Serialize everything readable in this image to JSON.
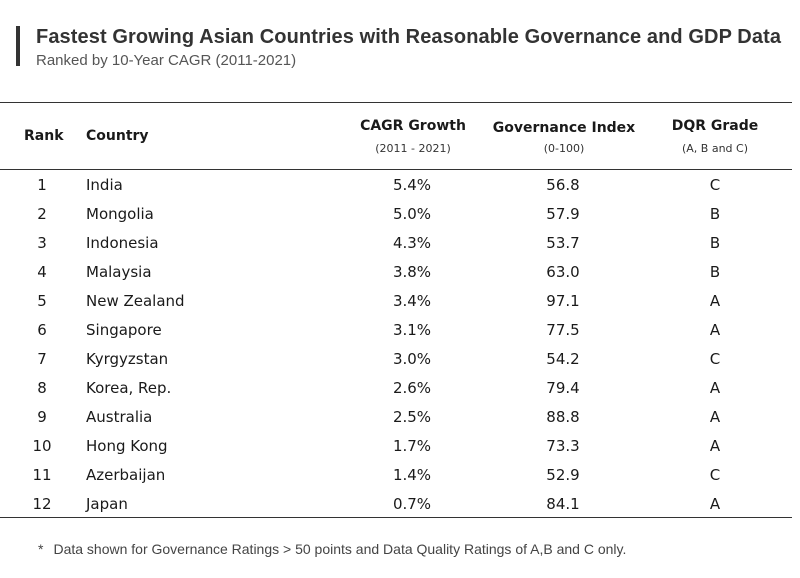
{
  "header": {
    "title": "Fastest Growing Asian Countries with Reasonable Governance and GDP Data",
    "subtitle": "Ranked by 10-Year CAGR (2011-2021)"
  },
  "columns": {
    "rank": "Rank",
    "country": "Country",
    "cagr": "CAGR Growth",
    "cagr_sub": "(2011 - 2021)",
    "gov": "Governance Index",
    "gov_sub": "(0-100)",
    "dqr": "DQR Grade",
    "dqr_sub": "(A, B and C)"
  },
  "chart_data": {
    "type": "table",
    "title": "Fastest Growing Asian Countries with Reasonable Governance and GDP Data",
    "subtitle": "Ranked by 10-Year CAGR (2011-2021)",
    "columns": [
      "Rank",
      "Country",
      "CAGR Growth (2011 - 2021)",
      "Governance Index (0-100)",
      "DQR Grade (A, B and C)"
    ],
    "rows": [
      {
        "rank": "1",
        "country": "India",
        "cagr": "5.4%",
        "gov": "56.8",
        "dqr": "C"
      },
      {
        "rank": "2",
        "country": "Mongolia",
        "cagr": "5.0%",
        "gov": "57.9",
        "dqr": "B"
      },
      {
        "rank": "3",
        "country": "Indonesia",
        "cagr": "4.3%",
        "gov": "53.7",
        "dqr": "B"
      },
      {
        "rank": "4",
        "country": "Malaysia",
        "cagr": "3.8%",
        "gov": "63.0",
        "dqr": "B"
      },
      {
        "rank": "5",
        "country": "New Zealand",
        "cagr": "3.4%",
        "gov": "97.1",
        "dqr": "A"
      },
      {
        "rank": "6",
        "country": "Singapore",
        "cagr": "3.1%",
        "gov": "77.5",
        "dqr": "A"
      },
      {
        "rank": "7",
        "country": "Kyrgyzstan",
        "cagr": "3.0%",
        "gov": "54.2",
        "dqr": "C"
      },
      {
        "rank": "8",
        "country": "Korea, Rep.",
        "cagr": "2.6%",
        "gov": "79.4",
        "dqr": "A"
      },
      {
        "rank": "9",
        "country": "Australia",
        "cagr": "2.5%",
        "gov": "88.8",
        "dqr": "A"
      },
      {
        "rank": "10",
        "country": "Hong Kong",
        "cagr": "1.7%",
        "gov": "73.3",
        "dqr": "A"
      },
      {
        "rank": "11",
        "country": "Azerbaijan",
        "cagr": "1.4%",
        "gov": "52.9",
        "dqr": "C"
      },
      {
        "rank": "12",
        "country": "Japan",
        "cagr": "0.7%",
        "gov": "84.1",
        "dqr": "A"
      }
    ]
  },
  "footnote": {
    "marker": "*",
    "text": "Data shown for Governance Ratings > 50 points and Data Quality Ratings of A,B and C only."
  }
}
